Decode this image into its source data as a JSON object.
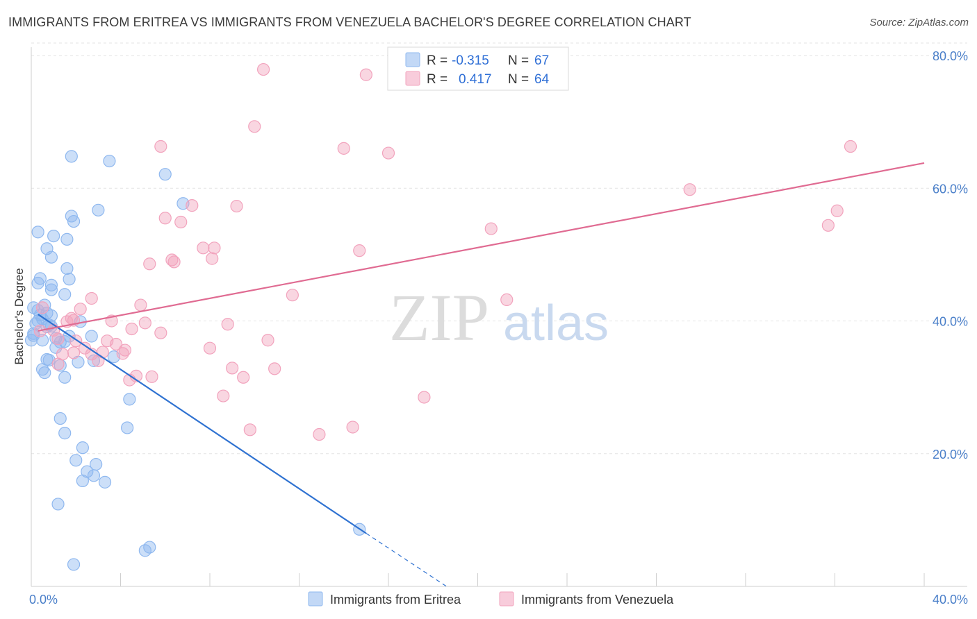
{
  "title": "IMMIGRANTS FROM ERITREA VS IMMIGRANTS FROM VENEZUELA BACHELOR'S DEGREE CORRELATION CHART",
  "source": "Source: ZipAtlas.com",
  "watermark": {
    "part1": "ZIP",
    "part2": "atlas"
  },
  "legend": {
    "r_label": "R =",
    "n_label": "N =",
    "rows": [
      {
        "r": "-0.315",
        "n": "67",
        "color": "#8fb8ef"
      },
      {
        "r": "0.417",
        "n": "64",
        "color": "#f2a3bd"
      }
    ]
  },
  "bottom_legend": [
    "Immigrants from Eritrea",
    "Immigrants from Venezuela"
  ],
  "chart_data": {
    "type": "scatter",
    "title": "IMMIGRANTS FROM ERITREA VS IMMIGRANTS FROM VENEZUELA BACHELOR'S DEGREE CORRELATION CHART",
    "xlabel": "",
    "ylabel": "Bachelor's Degree",
    "xlim": [
      0,
      40
    ],
    "ylim": [
      0,
      80
    ],
    "x_tick_labels": [
      "0.0%",
      "40.0%"
    ],
    "y_tick_labels": [
      "20.0%",
      "40.0%",
      "60.0%",
      "80.0%"
    ],
    "y_ticks": [
      20,
      40,
      60,
      80
    ],
    "grid": true,
    "legend_position": "top-center",
    "series": [
      {
        "name": "Immigrants from Eritrea",
        "color": "#8fb8ef",
        "line_color": "#2f72d1",
        "trend": {
          "x0": 0.3,
          "y0": 41,
          "x1": 15,
          "y1": 8,
          "dash_to_x": 18.6,
          "dash_to_y": 0
        },
        "points": [
          [
            1.8,
            64.8
          ],
          [
            3.5,
            64.1
          ],
          [
            6.0,
            62.1
          ],
          [
            6.8,
            57.7
          ],
          [
            3.0,
            56.7
          ],
          [
            1.8,
            55.8
          ],
          [
            1.9,
            55.0
          ],
          [
            0.3,
            53.4
          ],
          [
            1.0,
            52.8
          ],
          [
            1.6,
            52.3
          ],
          [
            0.7,
            50.9
          ],
          [
            0.9,
            49.6
          ],
          [
            1.6,
            47.9
          ],
          [
            0.4,
            46.4
          ],
          [
            1.7,
            46.3
          ],
          [
            0.3,
            45.7
          ],
          [
            0.9,
            45.4
          ],
          [
            0.9,
            44.7
          ],
          [
            1.5,
            44.0
          ],
          [
            0.1,
            42.0
          ],
          [
            0.6,
            42.4
          ],
          [
            0.3,
            41.6
          ],
          [
            0.9,
            40.8
          ],
          [
            0.7,
            41.2
          ],
          [
            0.4,
            40.9
          ],
          [
            0.5,
            40.3
          ],
          [
            0.3,
            40.0
          ],
          [
            0.2,
            39.6
          ],
          [
            0.8,
            39.4
          ],
          [
            0.9,
            39.2
          ],
          [
            0.7,
            39.1
          ],
          [
            2.2,
            39.9
          ],
          [
            0.1,
            38.1
          ],
          [
            0.1,
            37.8
          ],
          [
            1.7,
            37.7
          ],
          [
            2.7,
            37.7
          ],
          [
            1.1,
            37.4
          ],
          [
            1.3,
            36.8
          ],
          [
            1.5,
            36.9
          ],
          [
            0.5,
            37.1
          ],
          [
            0.0,
            37.1
          ],
          [
            1.1,
            36.0
          ],
          [
            3.7,
            34.6
          ],
          [
            0.7,
            34.2
          ],
          [
            0.8,
            34.1
          ],
          [
            2.8,
            34.0
          ],
          [
            2.1,
            33.8
          ],
          [
            1.3,
            33.3
          ],
          [
            0.5,
            32.7
          ],
          [
            0.6,
            32.2
          ],
          [
            1.5,
            31.5
          ],
          [
            4.4,
            28.2
          ],
          [
            1.3,
            25.3
          ],
          [
            4.3,
            23.9
          ],
          [
            1.5,
            23.1
          ],
          [
            2.3,
            20.9
          ],
          [
            2.0,
            19.0
          ],
          [
            2.9,
            18.4
          ],
          [
            2.5,
            17.3
          ],
          [
            2.8,
            16.7
          ],
          [
            2.3,
            15.9
          ],
          [
            3.3,
            15.7
          ],
          [
            1.2,
            12.4
          ],
          [
            14.7,
            8.6
          ],
          [
            5.3,
            5.9
          ],
          [
            5.1,
            5.4
          ],
          [
            1.9,
            3.3
          ]
        ]
      },
      {
        "name": "Immigrants from Venezuela",
        "color": "#f2a3bd",
        "line_color": "#e06b92",
        "trend": {
          "x0": 0.3,
          "y0": 38.5,
          "x1": 40,
          "y1": 63.8
        },
        "points": [
          [
            10.4,
            77.9
          ],
          [
            15.0,
            77.1
          ],
          [
            10.0,
            69.3
          ],
          [
            5.8,
            66.3
          ],
          [
            14.0,
            66.0
          ],
          [
            16.0,
            65.3
          ],
          [
            36.7,
            66.3
          ],
          [
            29.5,
            59.8
          ],
          [
            9.2,
            57.3
          ],
          [
            7.2,
            57.4
          ],
          [
            36.1,
            56.6
          ],
          [
            6.0,
            55.5
          ],
          [
            6.7,
            54.9
          ],
          [
            35.7,
            54.4
          ],
          [
            20.6,
            53.9
          ],
          [
            7.7,
            51.0
          ],
          [
            8.2,
            51.0
          ],
          [
            14.7,
            50.6
          ],
          [
            6.3,
            49.2
          ],
          [
            6.4,
            48.9
          ],
          [
            8.1,
            49.4
          ],
          [
            5.3,
            48.6
          ],
          [
            11.7,
            43.9
          ],
          [
            21.3,
            43.2
          ],
          [
            2.7,
            43.4
          ],
          [
            4.9,
            42.4
          ],
          [
            0.5,
            42.0
          ],
          [
            2.2,
            41.8
          ],
          [
            1.8,
            40.4
          ],
          [
            1.9,
            40.1
          ],
          [
            1.6,
            39.9
          ],
          [
            3.6,
            40.0
          ],
          [
            5.1,
            39.7
          ],
          [
            8.8,
            39.5
          ],
          [
            4.5,
            38.8
          ],
          [
            5.8,
            38.2
          ],
          [
            0.4,
            38.5
          ],
          [
            1.0,
            38.6
          ],
          [
            1.2,
            37.3
          ],
          [
            2.0,
            37.0
          ],
          [
            3.4,
            37.0
          ],
          [
            3.8,
            36.5
          ],
          [
            10.6,
            37.1
          ],
          [
            2.4,
            35.9
          ],
          [
            8.0,
            35.9
          ],
          [
            4.2,
            35.6
          ],
          [
            4.1,
            35.1
          ],
          [
            2.7,
            35.0
          ],
          [
            1.4,
            35.0
          ],
          [
            3.0,
            34.0
          ],
          [
            1.2,
            33.5
          ],
          [
            9.0,
            32.9
          ],
          [
            10.9,
            32.8
          ],
          [
            4.7,
            31.7
          ],
          [
            5.4,
            31.6
          ],
          [
            4.4,
            31.1
          ],
          [
            9.5,
            31.5
          ],
          [
            17.6,
            28.5
          ],
          [
            8.6,
            28.7
          ],
          [
            9.8,
            23.6
          ],
          [
            12.9,
            22.9
          ],
          [
            14.4,
            24.0
          ],
          [
            1.9,
            35.2
          ],
          [
            3.2,
            35.3
          ]
        ]
      }
    ]
  }
}
